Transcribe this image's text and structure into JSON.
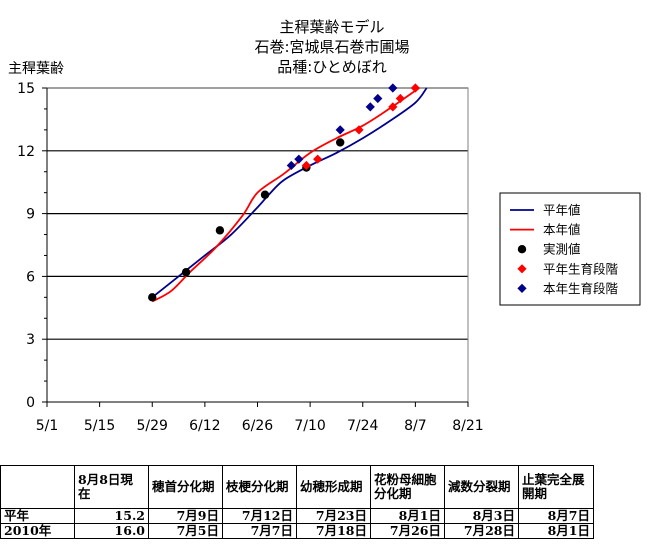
{
  "chart_data": {
    "type": "line",
    "title": [
      "主稈葉齢モデル",
      "石巻:宮城県石巻市圃場",
      "品種:ひとめぼれ"
    ],
    "ylabel": "主稈葉齢",
    "xlabel": "",
    "ylim": [
      0,
      15
    ],
    "yticks": [
      0,
      3,
      6,
      9,
      12,
      15
    ],
    "xlim": [
      "5/1",
      "8/21"
    ],
    "xticks": [
      "5/1",
      "5/15",
      "5/29",
      "6/12",
      "6/26",
      "7/10",
      "7/24",
      "8/7",
      "8/21"
    ],
    "grid": "horizontal",
    "legend_position": "right",
    "series": [
      {
        "name": "平年値",
        "kind": "line",
        "color": "#00008B",
        "points": [
          [
            "5/29",
            5.0
          ],
          [
            "6/5",
            6.0
          ],
          [
            "6/12",
            7.0
          ],
          [
            "6/19",
            8.0
          ],
          [
            "6/26",
            9.3
          ],
          [
            "6/29",
            9.9
          ],
          [
            "7/3",
            10.6
          ],
          [
            "7/10",
            11.3
          ],
          [
            "7/17",
            11.9
          ],
          [
            "7/24",
            12.6
          ],
          [
            "7/31",
            13.4
          ],
          [
            "8/7",
            14.3
          ],
          [
            "8/10",
            15.0
          ]
        ]
      },
      {
        "name": "本年値",
        "kind": "line",
        "color": "#FF0000",
        "points": [
          [
            "5/29",
            4.8
          ],
          [
            "6/3",
            5.3
          ],
          [
            "6/8",
            6.2
          ],
          [
            "6/15",
            7.4
          ],
          [
            "6/22",
            8.9
          ],
          [
            "6/26",
            10.0
          ],
          [
            "7/3",
            10.9
          ],
          [
            "7/10",
            11.9
          ],
          [
            "7/17",
            12.6
          ],
          [
            "7/24",
            13.2
          ],
          [
            "7/31",
            14.0
          ],
          [
            "8/8",
            15.0
          ]
        ]
      },
      {
        "name": "実測値",
        "kind": "marker",
        "color": "#000000",
        "points": [
          [
            "5/29",
            5.0
          ],
          [
            "6/7",
            6.2
          ],
          [
            "6/16",
            8.2
          ],
          [
            "6/28",
            9.9
          ],
          [
            "7/9",
            11.2
          ],
          [
            "7/18",
            12.4
          ]
        ]
      },
      {
        "name": "平年生育段階",
        "kind": "marker",
        "color": "#FF0000",
        "points": [
          [
            "7/9",
            11.3
          ],
          [
            "7/12",
            11.6
          ],
          [
            "7/23",
            13.0
          ],
          [
            "8/1",
            14.1
          ],
          [
            "8/3",
            14.5
          ],
          [
            "8/7",
            15.0
          ]
        ]
      },
      {
        "name": "本年生育段階",
        "kind": "marker",
        "color": "#00008B",
        "points": [
          [
            "7/5",
            11.3
          ],
          [
            "7/7",
            11.6
          ],
          [
            "7/18",
            13.0
          ],
          [
            "7/26",
            14.1
          ],
          [
            "7/28",
            14.5
          ],
          [
            "8/1",
            15.0
          ]
        ]
      }
    ]
  },
  "table": {
    "headers": [
      "",
      "8月8日現在",
      "穂首分化期",
      "枝梗分化期",
      "幼穂形成期",
      "花粉母細胞分化期",
      "減数分裂期",
      "止葉完全展開期"
    ],
    "rows": [
      {
        "label": "平年",
        "values": [
          "15.2",
          "7月9日",
          "7月12日",
          "7月23日",
          "8月1日",
          "8月3日",
          "8月7日"
        ]
      },
      {
        "label": "2010年",
        "values": [
          "16.0",
          "7月5日",
          "7月7日",
          "7月18日",
          "7月26日",
          "7月28日",
          "8月1日"
        ]
      }
    ]
  }
}
